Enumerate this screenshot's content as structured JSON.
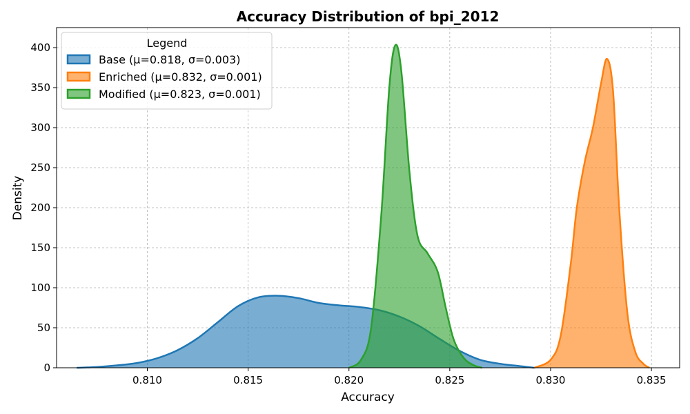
{
  "chart_data": {
    "type": "area",
    "title": "Accuracy Distribution of bpi_2012",
    "xlabel": "Accuracy",
    "ylabel": "Density",
    "xlim": [
      0.8055,
      0.8364
    ],
    "ylim": [
      0,
      425
    ],
    "xticks": [
      0.81,
      0.815,
      0.82,
      0.825,
      0.83,
      0.835
    ],
    "xtick_labels": [
      "0.810",
      "0.815",
      "0.820",
      "0.825",
      "0.830",
      "0.835"
    ],
    "yticks": [
      0,
      50,
      100,
      150,
      200,
      250,
      300,
      350,
      400
    ],
    "ytick_labels": [
      "0",
      "50",
      "100",
      "150",
      "200",
      "250",
      "300",
      "350",
      "400"
    ],
    "grid": true,
    "legend": {
      "title": "Legend",
      "position": "top-left"
    },
    "series": [
      {
        "name": "Base (μ=0.818, σ=0.003)",
        "color": "#1f77b4",
        "x": [
          0.8065,
          0.8075,
          0.8085,
          0.8095,
          0.8105,
          0.8115,
          0.8125,
          0.8135,
          0.8145,
          0.8155,
          0.8165,
          0.8175,
          0.8185,
          0.8195,
          0.8205,
          0.8215,
          0.8225,
          0.8235,
          0.8245,
          0.8255,
          0.8265,
          0.8275,
          0.8285,
          0.8292
        ],
        "values": [
          0,
          1,
          3,
          6,
          12,
          22,
          37,
          57,
          77,
          88,
          90,
          87,
          81,
          78,
          76,
          72,
          64,
          52,
          36,
          21,
          10,
          5,
          2,
          0
        ]
      },
      {
        "name": "Enriched (μ=0.832, σ=0.001)",
        "color": "#ff7f0e",
        "x": [
          0.8292,
          0.83,
          0.8305,
          0.831,
          0.8313,
          0.8317,
          0.8321,
          0.8325,
          0.8328,
          0.8331,
          0.8334,
          0.8338,
          0.8342,
          0.8346,
          0.8349
        ],
        "values": [
          0,
          10,
          40,
          130,
          200,
          258,
          300,
          355,
          386,
          345,
          200,
          70,
          20,
          5,
          0
        ]
      },
      {
        "name": "Modified (μ=0.823, σ=0.001)",
        "color": "#2ca02c",
        "x": [
          0.82,
          0.8206,
          0.8211,
          0.8216,
          0.822,
          0.8223,
          0.8226,
          0.823,
          0.8234,
          0.8239,
          0.8244,
          0.8248,
          0.8252,
          0.8257,
          0.8262,
          0.8266
        ],
        "values": [
          0,
          10,
          50,
          190,
          350,
          403,
          370,
          245,
          165,
          143,
          120,
          75,
          35,
          12,
          3,
          0
        ]
      }
    ]
  }
}
